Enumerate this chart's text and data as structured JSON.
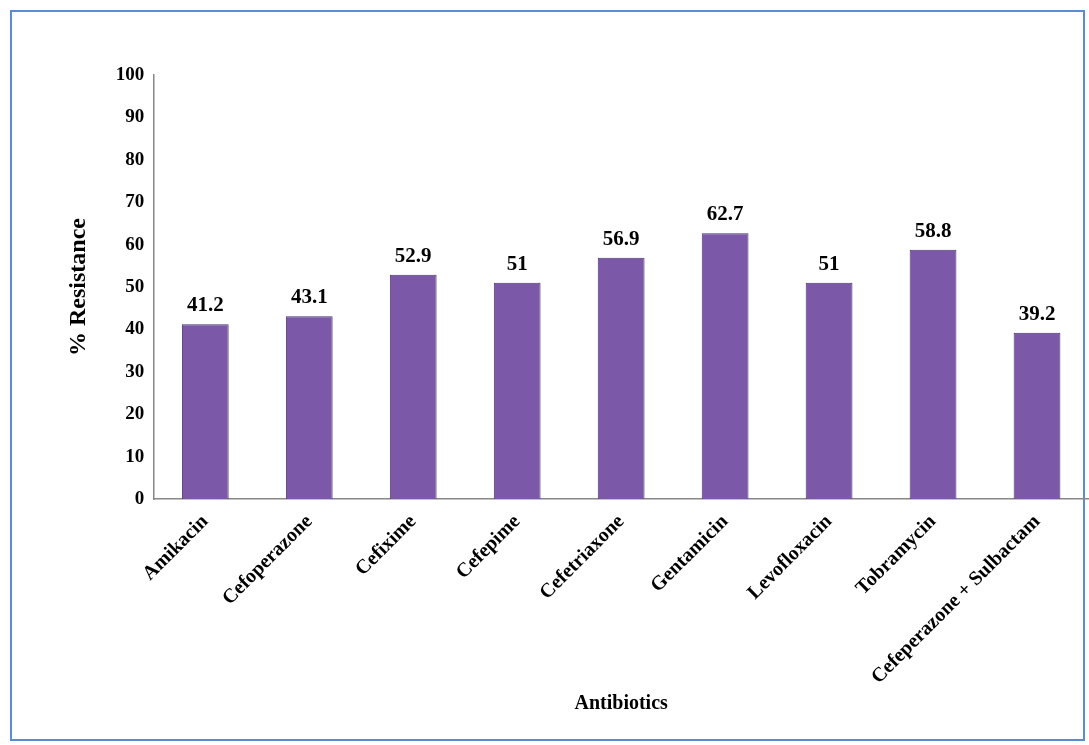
{
  "chart_data": {
    "type": "bar",
    "xlabel": "Antibiotics",
    "ylabel": "% Resistance",
    "categories": [
      "Amikacin",
      "Cefoperazone",
      "Cefixime",
      "Cefepime",
      "Cefetriaxone",
      "Gentamicin",
      "Levofloxacin",
      "Tobramycin",
      "Cefeperazone + Sulbactam"
    ],
    "values": [
      41.2,
      43.1,
      52.9,
      51,
      56.9,
      62.7,
      51,
      58.8,
      39.2
    ],
    "color": "#7b58a8",
    "ylim": [
      0,
      100
    ],
    "yticks": [
      0,
      10,
      20,
      30,
      40,
      50,
      60,
      70,
      80,
      90,
      100
    ],
    "data_labels": true,
    "grid": false,
    "legend": false
  }
}
